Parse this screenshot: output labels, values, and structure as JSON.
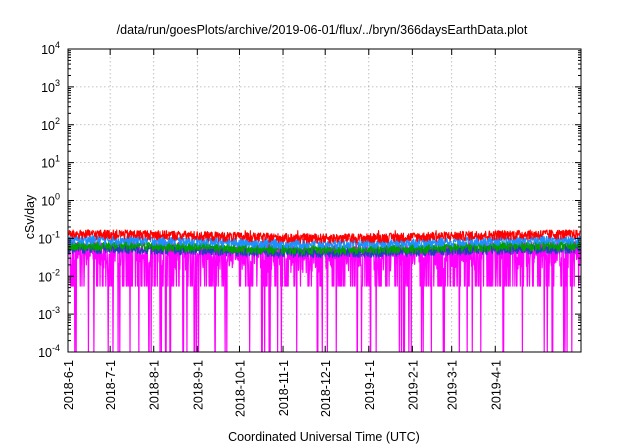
{
  "chart_data": {
    "type": "line",
    "title": "/data/run/goesPlots/archive/2019-06-01/flux/../bryn/366daysEarthData.plot",
    "xlabel": "Coordinated Universal Time (UTC)",
    "ylabel": "cSv/day",
    "y_scale": "log",
    "ylim": [
      0.0001,
      10000
    ],
    "xlim": [
      "2018-06-01",
      "2019-06-01"
    ],
    "grid": true,
    "legend": "none",
    "x_tick_labels": [
      "2018-6-1",
      "2018-7-1",
      "2018-8-1",
      "2018-9-1",
      "2018-10-1",
      "2018-11-1",
      "2018-12-1",
      "2019-1-1",
      "2019-2-1",
      "2019-3-1",
      "2019-4-1"
    ],
    "y_ticks": [
      {
        "value": 0.0001,
        "base": "10",
        "exp": "-4"
      },
      {
        "value": 0.001,
        "base": "10",
        "exp": "-3"
      },
      {
        "value": 0.01,
        "base": "10",
        "exp": "-2"
      },
      {
        "value": 0.1,
        "base": "10",
        "exp": "-1"
      },
      {
        "value": 1,
        "base": "10",
        "exp": "0"
      },
      {
        "value": 10,
        "base": "10",
        "exp": "1"
      },
      {
        "value": 100,
        "base": "10",
        "exp": "2"
      },
      {
        "value": 1000,
        "base": "10",
        "exp": "3"
      },
      {
        "value": 10000,
        "base": "10",
        "exp": "4"
      }
    ],
    "series": [
      {
        "color": "#ff00ff",
        "typical_value": 0.04,
        "min_value": 0.0001,
        "dropout_floor": 0.0055
      },
      {
        "color": "#1f3fbf",
        "typical_value": 0.05
      },
      {
        "color": "#00a000",
        "typical_value": 0.06
      },
      {
        "color": "#1e8fff",
        "typical_value": 0.085
      },
      {
        "color": "#ff0000",
        "typical_value": 0.12,
        "max_value": 0.16
      }
    ]
  }
}
